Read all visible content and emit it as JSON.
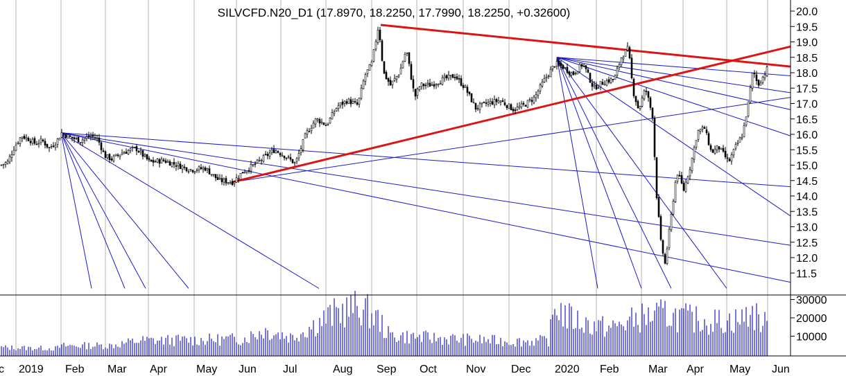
{
  "chart_data": {
    "type": "candlestick",
    "title": "SILVCFD.N20_D1 (17.8970, 18.2250, 17.7990, 18.2250, +0.32600)",
    "price_axis": {
      "ticks": [
        "20.0",
        "19.5",
        "19.0",
        "18.5",
        "18.0",
        "17.5",
        "17.0",
        "16.5",
        "16.0",
        "15.5",
        "15.0",
        "14.5",
        "14.0",
        "13.5",
        "13.0",
        "12.5",
        "12.0",
        "11.5"
      ],
      "ylim": [
        11.0,
        20.3
      ]
    },
    "volume_axis": {
      "ticks": [
        "30000",
        "20000",
        "10000"
      ],
      "ylim": [
        0,
        36000
      ]
    },
    "x_axis": {
      "labels": [
        "c",
        "2019",
        "Feb",
        "Mar",
        "Apr",
        "May",
        "Jun",
        "Jul",
        "Aug",
        "Sep",
        "Oct",
        "Nov",
        "Dec",
        "2020",
        "Feb",
        "Mar",
        "Apr",
        "May",
        "Jun"
      ]
    },
    "price_path": [
      [
        0,
        15.0
      ],
      [
        10,
        15.1
      ],
      [
        20,
        15.6
      ],
      [
        30,
        15.95
      ],
      [
        40,
        15.85
      ],
      [
        50,
        15.7
      ],
      [
        60,
        15.8
      ],
      [
        70,
        15.55
      ],
      [
        80,
        15.75
      ],
      [
        88,
        16.05
      ],
      [
        100,
        15.9
      ],
      [
        115,
        15.8
      ],
      [
        130,
        15.95
      ],
      [
        140,
        15.85
      ],
      [
        150,
        15.3
      ],
      [
        160,
        15.2
      ],
      [
        175,
        15.4
      ],
      [
        195,
        15.55
      ],
      [
        215,
        15.1
      ],
      [
        235,
        15.15
      ],
      [
        255,
        15.0
      ],
      [
        275,
        14.85
      ],
      [
        295,
        14.9
      ],
      [
        315,
        14.5
      ],
      [
        335,
        14.45
      ],
      [
        350,
        14.8
      ],
      [
        365,
        15.0
      ],
      [
        380,
        15.25
      ],
      [
        395,
        15.5
      ],
      [
        410,
        15.3
      ],
      [
        425,
        15.05
      ],
      [
        440,
        16.0
      ],
      [
        455,
        16.5
      ],
      [
        470,
        16.3
      ],
      [
        485,
        16.9
      ],
      [
        500,
        17.1
      ],
      [
        515,
        16.95
      ],
      [
        525,
        17.9
      ],
      [
        535,
        18.3
      ],
      [
        545,
        19.55
      ],
      [
        552,
        18.0
      ],
      [
        562,
        17.6
      ],
      [
        575,
        18.0
      ],
      [
        585,
        18.75
      ],
      [
        597,
        17.2
      ],
      [
        605,
        17.6
      ],
      [
        620,
        17.6
      ],
      [
        640,
        17.8
      ],
      [
        655,
        17.9
      ],
      [
        670,
        17.5
      ],
      [
        685,
        16.85
      ],
      [
        700,
        17.0
      ],
      [
        720,
        17.1
      ],
      [
        740,
        16.8
      ],
      [
        755,
        16.95
      ],
      [
        770,
        17.2
      ],
      [
        785,
        17.8
      ],
      [
        800,
        18.3
      ],
      [
        810,
        18.2
      ],
      [
        825,
        17.95
      ],
      [
        840,
        18.3
      ],
      [
        855,
        17.5
      ],
      [
        870,
        17.7
      ],
      [
        885,
        17.8
      ],
      [
        895,
        18.5
      ],
      [
        905,
        18.8
      ],
      [
        912,
        17.4
      ],
      [
        920,
        16.8
      ],
      [
        930,
        17.5
      ],
      [
        940,
        16.6
      ],
      [
        946,
        14.0
      ],
      [
        952,
        12.5
      ],
      [
        958,
        11.8
      ],
      [
        965,
        13.0
      ],
      [
        975,
        14.8
      ],
      [
        985,
        14.2
      ],
      [
        995,
        15.0
      ],
      [
        1005,
        16.1
      ],
      [
        1015,
        16.2
      ],
      [
        1025,
        15.4
      ],
      [
        1035,
        15.6
      ],
      [
        1050,
        15.1
      ],
      [
        1060,
        15.6
      ],
      [
        1070,
        16.0
      ],
      [
        1078,
        17.0
      ],
      [
        1085,
        18.1
      ],
      [
        1092,
        17.6
      ],
      [
        1100,
        17.9
      ],
      [
        1107,
        18.2
      ]
    ],
    "volume_path": [
      [
        0,
        4000
      ],
      [
        80,
        3500
      ],
      [
        90,
        5000
      ],
      [
        160,
        5200
      ],
      [
        200,
        8000
      ],
      [
        300,
        8500
      ],
      [
        350,
        9000
      ],
      [
        380,
        14000
      ],
      [
        420,
        10000
      ],
      [
        470,
        21000
      ],
      [
        490,
        25000
      ],
      [
        520,
        27000
      ],
      [
        545,
        20000
      ],
      [
        560,
        11000
      ],
      [
        620,
        9500
      ],
      [
        680,
        8500
      ],
      [
        740,
        7500
      ],
      [
        790,
        8000
      ],
      [
        800,
        29000
      ],
      [
        815,
        22000
      ],
      [
        840,
        18000
      ],
      [
        880,
        15000
      ],
      [
        920,
        21000
      ],
      [
        960,
        23000
      ],
      [
        1000,
        20000
      ],
      [
        1040,
        19000
      ],
      [
        1070,
        20000
      ],
      [
        1080,
        25000
      ],
      [
        1100,
        18000
      ],
      [
        1108,
        16000
      ]
    ],
    "trendlines_red": [
      {
        "from": [
          549,
          19.55
        ],
        "to": [
          1140,
          18.2
        ]
      },
      {
        "from": [
          335,
          14.45
        ],
        "to": [
          1140,
          18.85
        ]
      }
    ],
    "fan_lines_blue": [
      {
        "origin": [
          88,
          16.05
        ],
        "targets": [
          [
            132,
            11.0
          ],
          [
            180,
            11.0
          ],
          [
            210,
            11.0
          ],
          [
            272,
            11.0
          ],
          [
            460,
            11.0
          ],
          [
            1140,
            11.2
          ],
          [
            1140,
            12.4
          ],
          [
            1140,
            14.3
          ]
        ]
      },
      {
        "origin": [
          335,
          14.45
        ],
        "targets": [
          [
            1140,
            17.2
          ]
        ]
      },
      {
        "origin": [
          803,
          18.5
        ],
        "targets": [
          [
            862,
            11.0
          ],
          [
            925,
            11.0
          ],
          [
            968,
            11.0
          ],
          [
            1048,
            11.0
          ],
          [
            1140,
            13.35
          ],
          [
            1140,
            15.95
          ],
          [
            1140,
            16.8
          ],
          [
            1140,
            17.35
          ],
          [
            1140,
            17.9
          ]
        ]
      }
    ]
  }
}
